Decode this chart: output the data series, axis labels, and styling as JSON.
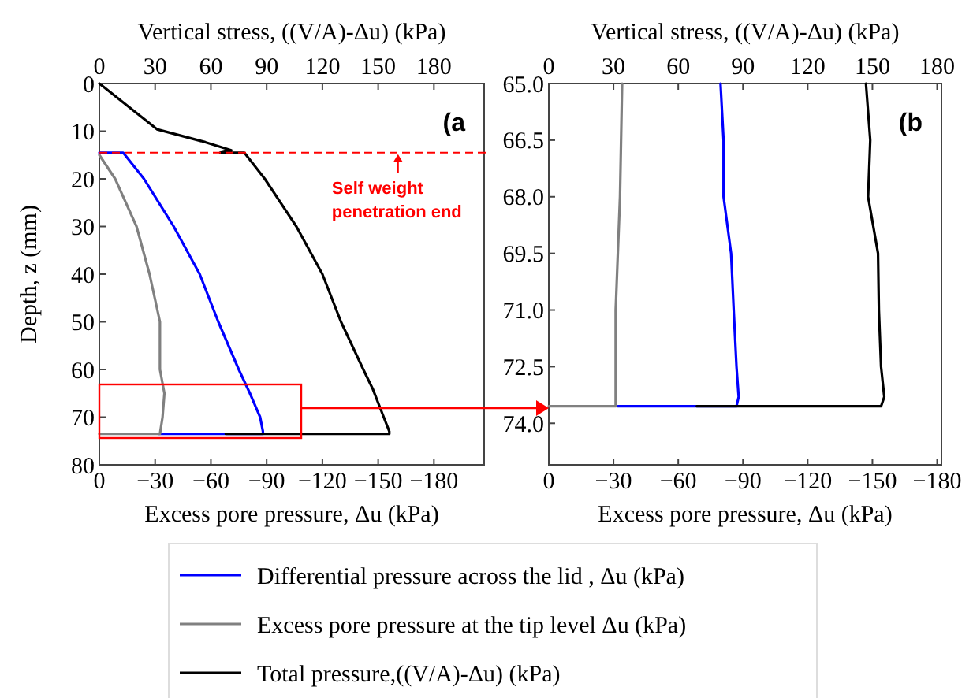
{
  "chart_data": [
    {
      "type": "line",
      "ylabel": "Depth, z (mm)",
      "xlabel": "Excess pore pressure, Δu (kPa)",
      "x2label": "Vertical stress, ((V/A)-Δu) (kPa)",
      "xlim": [
        0,
        -207
      ],
      "xticks": [
        0,
        {
          "value": -30,
          "label": "−30"
        },
        {
          "value": -60,
          "label": "−60"
        },
        {
          "value": -90,
          "label": "−90"
        },
        {
          "value": -120,
          "label": "−120"
        },
        {
          "value": -150,
          "label": "−150"
        },
        {
          "value": -180,
          "label": "−180"
        }
      ],
      "x2lim": [
        0,
        207
      ],
      "x2ticks": [
        0,
        30,
        60,
        90,
        120,
        150,
        180
      ],
      "ylim": [
        80,
        0
      ],
      "yticks": [
        0,
        10,
        20,
        30,
        40,
        50,
        60,
        70,
        80
      ],
      "legend": "bottom",
      "grid": false,
      "ref_lines": [
        {
          "axis": "y",
          "value": 14.5,
          "label": "Self weight penetration end",
          "color": "#ff0000",
          "line_style": "dashed"
        }
      ],
      "annotations": [
        "(a"
      ],
      "series": [
        {
          "name": "Differential pressure across the lid , Δu (kPa)",
          "color": "#0000ff",
          "x": [
            0,
            -12.8,
            -24,
            -40,
            -54,
            -64,
            -75,
            -81,
            -86.5,
            -88,
            -88,
            -32
          ],
          "values": [
            14.5,
            14.5,
            20,
            30,
            40,
            50,
            60,
            65,
            70,
            73,
            73.5,
            73.5
          ]
        },
        {
          "name": "Excess pore pressure at the tip level Δu (kPa)",
          "color": "#808080",
          "x": [
            0,
            -8.5,
            -20,
            -27,
            -32.6,
            -32.6,
            -35,
            -34,
            -32.6,
            0
          ],
          "values": [
            15,
            20,
            30,
            40,
            50,
            60,
            65,
            70,
            73.5,
            73.5
          ]
        },
        {
          "name": "Total pressure,((V/A)-Δu) (kPa)",
          "color": "#000000",
          "axis": "x2",
          "x": [
            0,
            31,
            57,
            71,
            65,
            78,
            89,
            106,
            120,
            130,
            142,
            147,
            153,
            156,
            156,
            68
          ],
          "values": [
            0,
            9.6,
            12.3,
            14,
            14.5,
            14.5,
            20,
            30,
            40,
            50,
            60,
            64,
            70,
            73,
            73.5,
            73.5
          ]
        }
      ]
    },
    {
      "type": "line",
      "xlabel": "Excess pore pressure, Δu (kPa)",
      "x2label": "Vertical stress, ((V/A)-Δu) (kPa)",
      "xlim": [
        0,
        -182
      ],
      "xticks": [
        0,
        {
          "value": -30,
          "label": "−30"
        },
        {
          "value": -60,
          "label": "−60"
        },
        {
          "value": -90,
          "label": "−90"
        },
        {
          "value": -120,
          "label": "−120"
        },
        {
          "value": -150,
          "label": "−150"
        },
        {
          "value": -180,
          "label": "−180"
        }
      ],
      "x2lim": [
        0,
        182
      ],
      "x2ticks": [
        0,
        30,
        60,
        90,
        120,
        150,
        180
      ],
      "ylim": [
        75.1,
        65
      ],
      "yticks": [
        {
          "value": 65,
          "label": "65.0"
        },
        66.5,
        {
          "value": 68,
          "label": "68.0"
        },
        69.5,
        {
          "value": 71,
          "label": "71.0"
        },
        72.5,
        {
          "value": 74,
          "label": "74.0"
        }
      ],
      "grid": false,
      "annotations": [
        "(b"
      ],
      "series": [
        {
          "color": "#0000ff",
          "x": [
            -79.6,
            -81,
            -81,
            -84.5,
            -85.7,
            -87,
            -88,
            -87,
            -32
          ],
          "values": [
            65,
            66.5,
            68,
            69.5,
            71,
            72.5,
            73.3,
            73.55,
            73.55
          ]
        },
        {
          "color": "#808080",
          "x": [
            -34,
            -33,
            -31,
            -31,
            0
          ],
          "values": [
            65,
            68,
            71,
            73.55,
            73.55
          ]
        },
        {
          "color": "#000000",
          "axis": "x2",
          "x": [
            147,
            149,
            148,
            152.6,
            153,
            154,
            155.5,
            154,
            68.6
          ],
          "values": [
            65,
            66.5,
            68,
            69.5,
            71,
            72.5,
            73.3,
            73.55,
            73.55
          ]
        }
      ]
    }
  ]
}
